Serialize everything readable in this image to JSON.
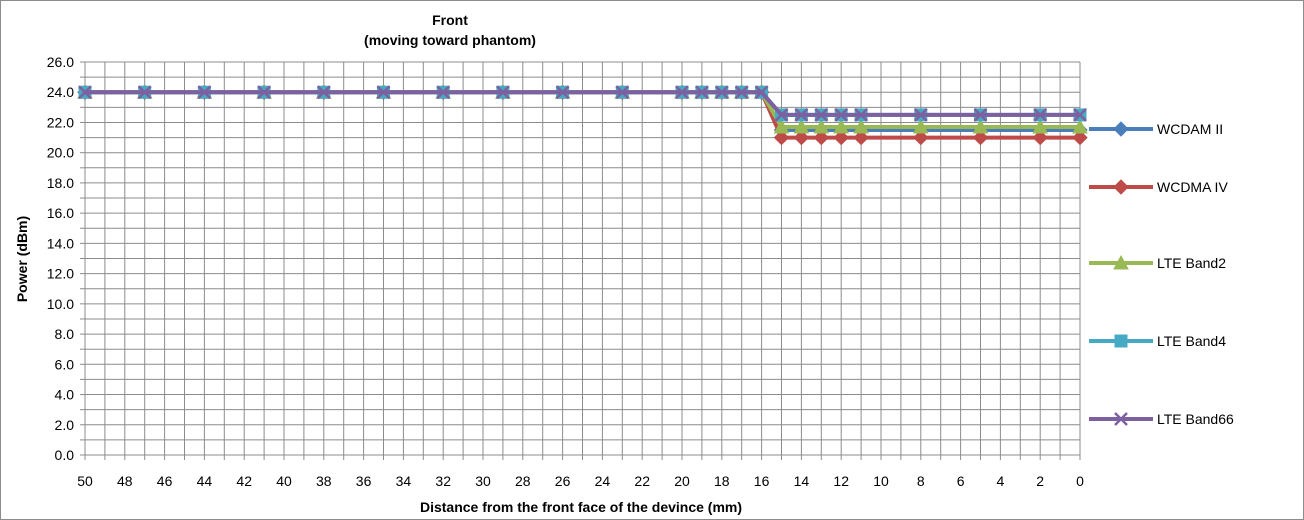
{
  "chart_data": {
    "type": "line",
    "title": "Front",
    "subtitle": "(moving toward phantom)",
    "xlabel": "Distance from the front face of the devince (mm)",
    "ylabel": "Power (dBm)",
    "ylim": [
      0,
      26
    ],
    "y_ticks": [
      "0.0",
      "2.0",
      "4.0",
      "6.0",
      "8.0",
      "10.0",
      "12.0",
      "14.0",
      "16.0",
      "18.0",
      "20.0",
      "22.0",
      "24.0",
      "26.0"
    ],
    "x_tick_labels": [
      "50",
      "48",
      "46",
      "44",
      "42",
      "40",
      "38",
      "36",
      "34",
      "32",
      "30",
      "28",
      "26",
      "24",
      "22",
      "20",
      "18",
      "16",
      "14",
      "12",
      "10",
      "8",
      "6",
      "4",
      "2",
      "0"
    ],
    "x_axis_reversed": true,
    "grid": true,
    "legend_position": "right",
    "x": [
      50,
      47,
      44,
      41,
      38,
      35,
      32,
      29,
      26,
      23,
      20,
      19,
      18,
      17,
      16,
      15,
      14,
      13,
      12,
      11,
      8,
      5,
      2,
      0
    ],
    "series": [
      {
        "name": "WCDAM II",
        "color": "#4a7ebb",
        "marker": "diamond",
        "values": [
          24,
          24,
          24,
          24,
          24,
          24,
          24,
          24,
          24,
          24,
          24,
          24,
          24,
          24,
          24,
          21.5,
          21.5,
          21.5,
          21.5,
          21.5,
          21.5,
          21.5,
          21.5,
          21.5
        ]
      },
      {
        "name": "WCDMA IV",
        "color": "#be4b48",
        "marker": "diamond",
        "values": [
          24,
          24,
          24,
          24,
          24,
          24,
          24,
          24,
          24,
          24,
          24,
          24,
          24,
          24,
          24,
          21.0,
          21.0,
          21.0,
          21.0,
          21.0,
          21.0,
          21.0,
          21.0,
          21.0
        ]
      },
      {
        "name": "LTE Band2",
        "color": "#98b954",
        "marker": "triangle",
        "values": [
          24,
          24,
          24,
          24,
          24,
          24,
          24,
          24,
          24,
          24,
          24,
          24,
          24,
          24,
          24,
          21.7,
          21.7,
          21.7,
          21.7,
          21.7,
          21.7,
          21.7,
          21.7,
          21.7
        ]
      },
      {
        "name": "LTE Band4",
        "color": "#46aac5",
        "marker": "square",
        "values": [
          24,
          24,
          24,
          24,
          24,
          24,
          24,
          24,
          24,
          24,
          24,
          24,
          24,
          24,
          24,
          22.5,
          22.5,
          22.5,
          22.5,
          22.5,
          22.5,
          22.5,
          22.5,
          22.5
        ]
      },
      {
        "name": "LTE Band66",
        "color": "#7d60a0",
        "marker": "x",
        "values": [
          24,
          24,
          24,
          24,
          24,
          24,
          24,
          24,
          24,
          24,
          24,
          24,
          24,
          24,
          24,
          22.5,
          22.5,
          22.5,
          22.5,
          22.5,
          22.5,
          22.5,
          22.5,
          22.5
        ]
      }
    ],
    "line_color_green_flat": "#98b954"
  }
}
